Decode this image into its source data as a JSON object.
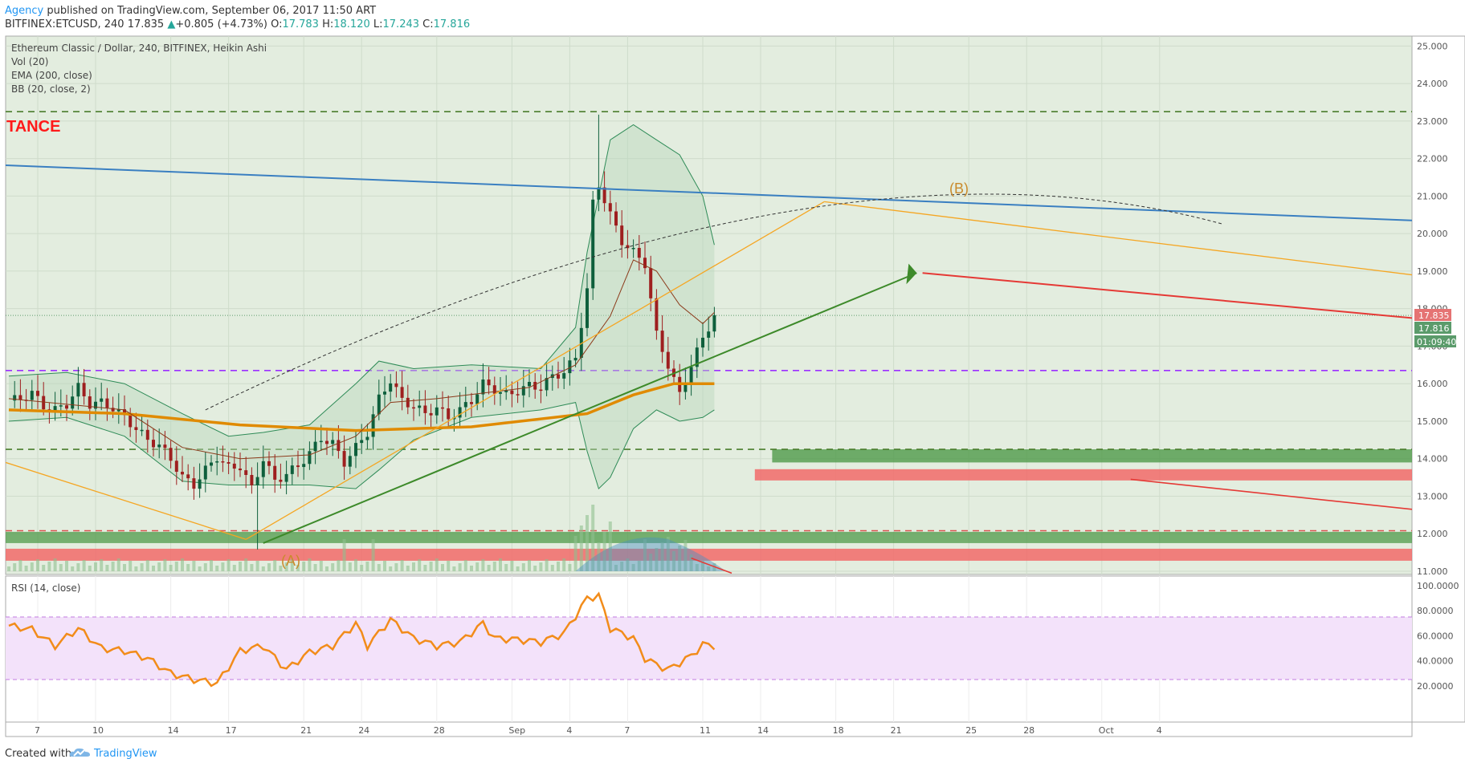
{
  "header": {
    "author": "Agency",
    "published": " published on TradingView.com, September 06, 2017 11:50 ART",
    "symbol": "BITFINEX:ETCUSD, 240",
    "last": "17.835",
    "change_arrow": "▲",
    "change": "+0.805 (+4.73%)",
    "o_label": "O:",
    "o_value": "17.783",
    "h_label": "H:",
    "h_value": "18.120",
    "l_label": "L:",
    "l_value": "17.243",
    "c_label": "C:",
    "c_value": "17.816"
  },
  "legend": {
    "title": "Ethereum Classic / Dollar, 240, BITFINEX, Heikin Ashi",
    "vol": "Vol (20)",
    "ema": "EMA (200, close)",
    "bb": "BB (20, close, 2)"
  },
  "annotations": {
    "resistance_text": "TANCE",
    "point_a": "(A)",
    "point_b": "(B)"
  },
  "badges": {
    "last_price": "17.835",
    "close_price": "17.816",
    "countdown": "01:09:40",
    "last_color": "#e57373",
    "close_color": "#5b9b6b",
    "countdown_color": "#5b9b6b"
  },
  "rsi": {
    "label": "RSI (14, close)",
    "upper_band": 75,
    "lower_band": 25,
    "axis_ticks": [
      "100.0000",
      "80.0000",
      "60.0000",
      "40.0000",
      "20.0000"
    ]
  },
  "footer": {
    "created_with": "Created with",
    "brand": "TradingView",
    "logo_icon": "tradingview-cloud-icon"
  },
  "colors": {
    "price_bg": "#e3eddf",
    "rsi_bg": "#f3e2fa",
    "up_candle": "#0e5f3c",
    "down_candle": "#9e1f1f",
    "ema": "#e08a00",
    "bb": "#2e8b57",
    "rsi_line": "#f28c1a",
    "trend_blue": "#3a7fc1",
    "trend_green": "#3d8a2a",
    "trend_red": "#e53935",
    "trend_orange": "#f5a623",
    "support_green": "#4f9a4a",
    "support_red": "#f26a6a",
    "dash_green": "#4a7d2c",
    "dash_purple": "#9b30ff"
  },
  "chart_data": {
    "type": "candlestick",
    "title": "Ethereum Classic / Dollar, 240, BITFINEX, Heikin Ashi",
    "y_axis": {
      "ticks": [
        "25.000",
        "24.000",
        "23.000",
        "22.000",
        "21.000",
        "20.000",
        "19.000",
        "18.000",
        "17.000",
        "16.000",
        "15.000",
        "14.000",
        "13.000",
        "12.000",
        "11.000"
      ],
      "range": [
        11.0,
        25.2
      ]
    },
    "x_axis": {
      "ticks": [
        "7",
        "10",
        "14",
        "17",
        "21",
        "24",
        "28",
        "Sep",
        "4",
        "7",
        "11",
        "14",
        "18",
        "21",
        "25",
        "28",
        "Oct",
        "4"
      ]
    },
    "series_close": [
      [
        0,
        15.55
      ],
      [
        2,
        15.6
      ],
      [
        4,
        15.75
      ],
      [
        6,
        15.4
      ],
      [
        8,
        15.3
      ],
      [
        10,
        15.45
      ],
      [
        12,
        15.9
      ],
      [
        14,
        15.45
      ],
      [
        16,
        15.5
      ],
      [
        18,
        15.35
      ],
      [
        20,
        15.1
      ],
      [
        22,
        14.8
      ],
      [
        24,
        14.5
      ],
      [
        26,
        14.35
      ],
      [
        28,
        14.0
      ],
      [
        30,
        13.5
      ],
      [
        32,
        13.3
      ],
      [
        34,
        13.7
      ],
      [
        36,
        14.05
      ],
      [
        38,
        13.75
      ],
      [
        40,
        13.8
      ],
      [
        42,
        13.2
      ],
      [
        44,
        14.0
      ],
      [
        46,
        13.4
      ],
      [
        48,
        13.6
      ],
      [
        50,
        13.8
      ],
      [
        52,
        14.15
      ],
      [
        54,
        14.55
      ],
      [
        56,
        14.4
      ],
      [
        58,
        13.9
      ],
      [
        60,
        14.3
      ],
      [
        62,
        14.7
      ],
      [
        64,
        15.6
      ],
      [
        66,
        16.1
      ],
      [
        68,
        15.55
      ],
      [
        70,
        15.4
      ],
      [
        72,
        15.2
      ],
      [
        74,
        15.35
      ],
      [
        76,
        15.1
      ],
      [
        78,
        15.3
      ],
      [
        80,
        15.55
      ],
      [
        82,
        16.0
      ],
      [
        84,
        15.85
      ],
      [
        86,
        15.7
      ],
      [
        88,
        15.8
      ],
      [
        90,
        15.95
      ],
      [
        92,
        15.9
      ],
      [
        94,
        16.2
      ],
      [
        96,
        16.3
      ],
      [
        98,
        16.7
      ],
      [
        100,
        18.5
      ],
      [
        101,
        20.8
      ],
      [
        102,
        21.3
      ],
      [
        104,
        20.5
      ],
      [
        106,
        19.8
      ],
      [
        108,
        19.5
      ],
      [
        110,
        19.2
      ],
      [
        112,
        17.3
      ],
      [
        114,
        16.5
      ],
      [
        116,
        15.7
      ],
      [
        118,
        16.5
      ],
      [
        120,
        17.2
      ],
      [
        122,
        17.82
      ]
    ],
    "series_ema200": [
      [
        0,
        15.3
      ],
      [
        20,
        15.2
      ],
      [
        40,
        14.9
      ],
      [
        60,
        14.75
      ],
      [
        80,
        14.85
      ],
      [
        100,
        15.2
      ],
      [
        108,
        15.7
      ],
      [
        115,
        16.0
      ],
      [
        122,
        16.0
      ]
    ],
    "rsi_values": [
      [
        0,
        68
      ],
      [
        4,
        65
      ],
      [
        8,
        52
      ],
      [
        12,
        66
      ],
      [
        16,
        50
      ],
      [
        20,
        48
      ],
      [
        24,
        42
      ],
      [
        28,
        30
      ],
      [
        32,
        25
      ],
      [
        36,
        22
      ],
      [
        40,
        48
      ],
      [
        44,
        52
      ],
      [
        48,
        33
      ],
      [
        52,
        47
      ],
      [
        56,
        52
      ],
      [
        60,
        70
      ],
      [
        62,
        52
      ],
      [
        66,
        73
      ],
      [
        70,
        58
      ],
      [
        74,
        52
      ],
      [
        78,
        55
      ],
      [
        82,
        70
      ],
      [
        84,
        58
      ],
      [
        88,
        57
      ],
      [
        92,
        55
      ],
      [
        96,
        62
      ],
      [
        100,
        90
      ],
      [
        102,
        92
      ],
      [
        104,
        66
      ],
      [
        108,
        58
      ],
      [
        110,
        42
      ],
      [
        112,
        37
      ],
      [
        114,
        33
      ],
      [
        118,
        44
      ],
      [
        120,
        53
      ],
      [
        122,
        52
      ]
    ]
  }
}
